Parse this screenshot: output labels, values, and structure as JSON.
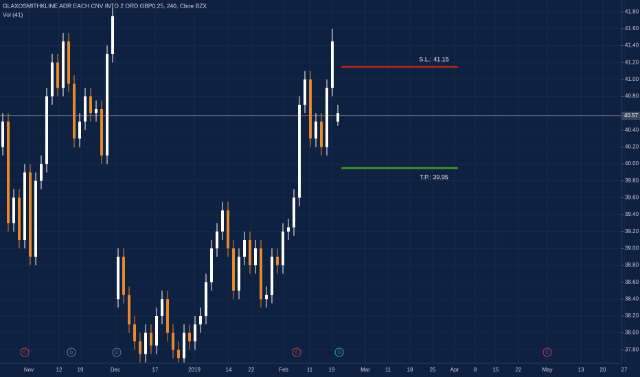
{
  "chart_data": {
    "type": "candlestick",
    "title": "GLAXOSMITHKLINE ADR EACH CNV INTO 2 ORD GBP0.25, 240, Cboe BZX",
    "subtitle": "Vol (41)",
    "open": [
      40.2,
      40.5,
      39.3,
      39.6,
      39.1,
      39.9,
      38.9,
      39.8,
      40.0,
      40.8,
      41.2,
      40.9,
      41.45,
      40.95,
      40.3,
      40.5,
      40.8,
      40.6,
      40.65,
      40.1,
      41.3,
      38.4,
      38.9,
      38.45,
      38.1,
      37.9,
      37.75,
      38.0,
      37.85,
      38.2,
      38.4,
      38.0,
      37.8,
      37.7,
      38.0,
      37.9,
      38.1,
      38.2,
      38.6,
      39.0,
      39.2,
      39.45,
      39.0,
      38.5,
      38.9,
      39.1,
      38.8,
      39.0,
      38.4,
      38.45,
      38.9,
      38.8,
      39.2,
      39.25,
      39.6,
      40.7,
      41.0,
      40.3,
      40.5,
      40.2,
      40.9,
      40.5
    ],
    "high": [
      40.6,
      40.6,
      39.7,
      39.7,
      40.0,
      40.0,
      39.9,
      40.1,
      40.9,
      41.3,
      41.3,
      41.55,
      41.55,
      41.05,
      40.6,
      40.9,
      40.9,
      40.75,
      40.75,
      41.4,
      41.85,
      39.0,
      39.0,
      38.55,
      38.2,
      38.0,
      38.1,
      38.1,
      38.3,
      38.5,
      38.5,
      38.1,
      37.9,
      38.1,
      38.1,
      38.2,
      38.3,
      38.7,
      39.1,
      39.3,
      39.55,
      39.55,
      39.1,
      39.0,
      39.2,
      39.2,
      39.1,
      39.1,
      38.55,
      39.0,
      39.0,
      39.3,
      39.35,
      39.7,
      40.8,
      41.1,
      41.1,
      40.6,
      40.6,
      41.0,
      41.6,
      40.7
    ],
    "low": [
      40.1,
      39.2,
      39.2,
      39.0,
      39.0,
      38.8,
      38.8,
      39.7,
      39.9,
      40.7,
      40.8,
      40.8,
      40.85,
      40.2,
      40.2,
      40.4,
      40.5,
      40.5,
      40.0,
      40.0,
      41.2,
      38.3,
      38.35,
      38.0,
      37.8,
      37.65,
      37.65,
      37.75,
      37.75,
      38.1,
      37.9,
      37.7,
      37.65,
      37.65,
      37.8,
      37.8,
      38.0,
      38.1,
      38.5,
      38.9,
      39.1,
      38.9,
      38.4,
      38.4,
      38.8,
      38.7,
      38.7,
      38.3,
      38.3,
      38.35,
      38.7,
      38.7,
      39.1,
      39.15,
      39.5,
      40.6,
      40.2,
      40.2,
      40.1,
      40.1,
      40.8,
      40.45
    ],
    "close": [
      40.5,
      39.3,
      39.6,
      39.1,
      39.9,
      38.9,
      39.8,
      40.0,
      40.8,
      41.2,
      40.9,
      41.45,
      40.95,
      40.3,
      40.5,
      40.8,
      40.6,
      40.65,
      40.1,
      41.3,
      41.75,
      38.9,
      38.45,
      38.1,
      37.9,
      37.75,
      38.0,
      37.85,
      38.2,
      38.4,
      38.0,
      37.8,
      37.7,
      38.0,
      37.9,
      38.1,
      38.2,
      38.6,
      39.0,
      39.2,
      39.45,
      39.0,
      38.5,
      38.9,
      39.1,
      38.8,
      39.0,
      38.4,
      38.45,
      38.9,
      38.8,
      39.2,
      39.25,
      39.6,
      40.7,
      41.0,
      40.3,
      40.5,
      40.2,
      40.9,
      41.45,
      40.6
    ],
    "up_color": "#ffffff",
    "down_color": "#e8892a",
    "ylim": [
      37.64,
      41.94
    ],
    "yticks": [
      {
        "value": 41.8,
        "label": "41.80"
      },
      {
        "value": 41.6,
        "label": "41.60"
      },
      {
        "value": 41.4,
        "label": "41.40"
      },
      {
        "value": 41.2,
        "label": "41.20"
      },
      {
        "value": 41.0,
        "label": "41.00"
      },
      {
        "value": 40.8,
        "label": "40.80"
      },
      {
        "value": 40.4,
        "label": "40.40"
      },
      {
        "value": 40.2,
        "label": "40.20"
      },
      {
        "value": 40.0,
        "label": "40.00"
      },
      {
        "value": 39.8,
        "label": "39.80"
      },
      {
        "value": 39.6,
        "label": "39.60"
      },
      {
        "value": 39.4,
        "label": "39.40"
      },
      {
        "value": 39.2,
        "label": "39.20"
      },
      {
        "value": 39.0,
        "label": "39.00"
      },
      {
        "value": 38.8,
        "label": "38.80"
      },
      {
        "value": 38.6,
        "label": "38.60"
      },
      {
        "value": 38.4,
        "label": "38.40"
      },
      {
        "value": 38.2,
        "label": "38.20"
      },
      {
        "value": 38.0,
        "label": "38.00"
      },
      {
        "value": 37.8,
        "label": "37.80"
      }
    ],
    "x_labels": [
      "Nov",
      "12",
      "19",
      "Dec",
      "17",
      "2019",
      "14",
      "22",
      "Feb",
      "11",
      "19",
      "Mar",
      "11",
      "18",
      "25",
      "Apr",
      "8",
      "15",
      "22",
      "May",
      "13",
      "20",
      "27"
    ],
    "last_price": {
      "value": 40.57,
      "label": "40.57"
    },
    "stop_loss": {
      "value": 41.15,
      "label": "S.L.: 41.15",
      "color": "#a3241c"
    },
    "take_profit": {
      "value": 39.95,
      "label": "T.P.: 39.95",
      "color": "#3f8a32"
    },
    "events": [
      "E",
      "D",
      "D",
      "E",
      "D",
      "E"
    ]
  }
}
